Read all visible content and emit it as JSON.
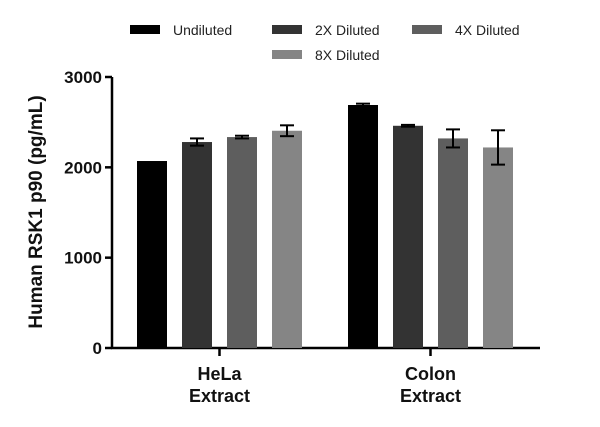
{
  "chart_data": {
    "type": "bar",
    "title": "",
    "xlabel": "",
    "ylabel": "Human RSK1 p90 (pg/mL)",
    "ylim": [
      0,
      3000
    ],
    "yticks": [
      "0",
      "1000",
      "2000",
      "3000"
    ],
    "ytick_values": [
      0,
      1000,
      2000,
      3000
    ],
    "grid": false,
    "legend_position": "top",
    "categories": [
      {
        "line1": "HeLa",
        "line2": "Extract"
      },
      {
        "line1": "Colon",
        "line2": "Extract"
      }
    ],
    "series": [
      {
        "name": "Undiluted",
        "color": "#000000",
        "values": [
          2070,
          2690
        ],
        "errors": [
          0,
          15
        ]
      },
      {
        "name": "2X Diluted",
        "color": "#333333",
        "values": [
          2280,
          2460
        ],
        "errors": [
          40,
          10
        ]
      },
      {
        "name": "4X Diluted",
        "color": "#5e5e5e",
        "values": [
          2335,
          2320
        ],
        "errors": [
          15,
          100
        ]
      },
      {
        "name": "8X Diluted",
        "color": "#858585",
        "values": [
          2405,
          2220
        ],
        "errors": [
          60,
          190
        ]
      }
    ]
  }
}
